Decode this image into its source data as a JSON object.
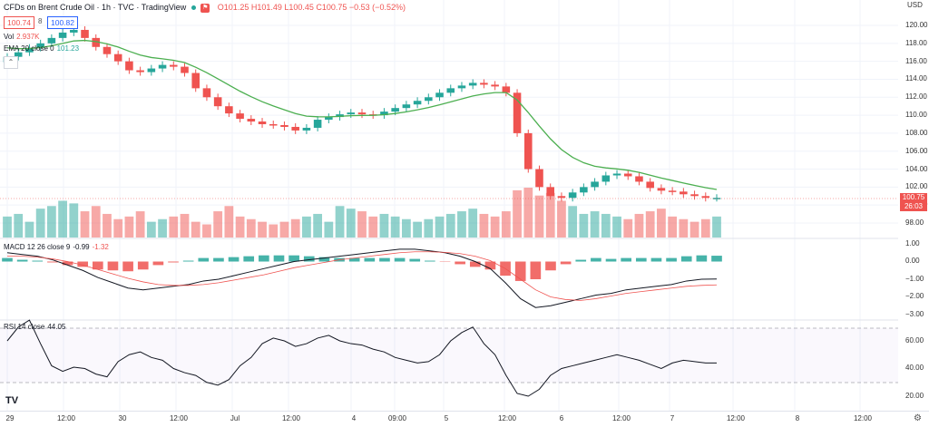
{
  "header": {
    "symbol": "CFDs on Brent Crude Oil · 1h · TVC · TradingView",
    "ohlc": "O101.25 H101.49 L100.45 C100.75 −0.53 (−0.52%)",
    "bid": "100.74",
    "spread": "8",
    "ask": "100.82"
  },
  "indicators": {
    "vol": {
      "name": "Vol",
      "value": "2.937K"
    },
    "ema": {
      "name": "EMA 20 close 0",
      "value": "101.23"
    },
    "macd": {
      "name": "MACD 12 26 close 9",
      "v1": "-0.99",
      "v2": "-1.32"
    },
    "rsi": {
      "name": "RSI 14 close",
      "value": "44.05"
    }
  },
  "last_price": {
    "value": "100.75",
    "countdown": "26:03"
  },
  "currency": "USD",
  "price_axis": [
    "120.00",
    "118.00",
    "116.00",
    "114.00",
    "112.00",
    "110.00",
    "108.00",
    "106.00",
    "104.00",
    "102.00",
    "100.00",
    "98.00"
  ],
  "macd_axis": [
    "1.00",
    "0.00",
    "−1.00",
    "−2.00",
    "−3.00"
  ],
  "rsi_axis": [
    "60.00",
    "40.00",
    "20.00"
  ],
  "time_axis": [
    "29",
    "12:00",
    "30",
    "12:00",
    "Jul",
    "12:00",
    "4",
    "09:00",
    "5",
    "12:00",
    "6",
    "12:00",
    "7",
    "12:00",
    "8",
    "12:00"
  ],
  "colors": {
    "up": "#26a69a",
    "down": "#ef5350",
    "ema": "#4caf50",
    "macd": "#131722",
    "signal": "#ef5350"
  },
  "chart_data": {
    "type": "candlestick",
    "title": "CFDs on Brent Crude Oil · 1h · TVC",
    "ylim": [
      97,
      121
    ],
    "close": [
      116.5,
      117,
      117.5,
      118,
      118.6,
      119.2,
      119.5,
      118.6,
      117.6,
      116.8,
      116,
      115,
      114.8,
      115.2,
      115.6,
      115.4,
      114.7,
      113,
      112,
      111,
      110.2,
      109.6,
      109.3,
      109,
      108.9,
      108.7,
      108.3,
      108.6,
      109.5,
      109.8,
      110.1,
      110.3,
      110.1,
      110,
      110.4,
      110.8,
      111.2,
      111.6,
      112,
      112.5,
      113,
      113.3,
      113.6,
      113.4,
      113.2,
      112.5,
      108,
      104,
      102,
      101,
      100.8,
      101.4,
      102,
      102.6,
      103.3,
      103.5,
      103.2,
      102.6,
      101.9,
      101.6,
      101.5,
      101.2,
      101,
      100.8,
      100.8
    ],
    "volume": [
      40,
      45,
      30,
      55,
      60,
      70,
      65,
      50,
      60,
      45,
      35,
      40,
      50,
      30,
      35,
      40,
      45,
      30,
      25,
      50,
      60,
      40,
      35,
      30,
      25,
      30,
      35,
      40,
      45,
      30,
      60,
      55,
      50,
      40,
      45,
      40,
      35,
      30,
      35,
      40,
      45,
      50,
      55,
      45,
      40,
      50,
      90,
      95,
      80,
      85,
      70,
      60,
      45,
      50,
      45,
      40,
      35,
      45,
      50,
      55,
      40,
      35,
      30,
      35,
      40
    ],
    "rsi": [
      60,
      70,
      75,
      58,
      42,
      38,
      41,
      40,
      36,
      34,
      45,
      50,
      52,
      48,
      46,
      40,
      37,
      35,
      30,
      28,
      32,
      42,
      48,
      58,
      62,
      60,
      56,
      58,
      62,
      64,
      60,
      58,
      57,
      54,
      52,
      48,
      46,
      44,
      45,
      50,
      60,
      66,
      70,
      58,
      50,
      35,
      22,
      20,
      25,
      35,
      40,
      42,
      44,
      46,
      48,
      50,
      48,
      46,
      43,
      40,
      44,
      46,
      45,
      44,
      44
    ],
    "macd": [
      0.5,
      0.4,
      0.3,
      0.1,
      -0.2,
      -0.5,
      -0.9,
      -1.2,
      -1.5,
      -1.6,
      -1.5,
      -1.4,
      -1.3,
      -1.1,
      -1.0,
      -0.8,
      -0.6,
      -0.4,
      -0.2,
      0,
      0.1,
      0.2,
      0.3,
      0.4,
      0.5,
      0.6,
      0.7,
      0.7,
      0.6,
      0.5,
      0.3,
      0,
      -0.4,
      -1.2,
      -2.1,
      -2.6,
      -2.5,
      -2.3,
      -2.1,
      -1.9,
      -1.8,
      -1.6,
      -1.5,
      -1.4,
      -1.3,
      -1.1,
      -1.0,
      -0.99
    ],
    "signal": [
      0.3,
      0.3,
      0.25,
      0.15,
      0,
      -0.2,
      -0.45,
      -0.7,
      -0.95,
      -1.15,
      -1.3,
      -1.35,
      -1.35,
      -1.3,
      -1.2,
      -1.05,
      -0.9,
      -0.75,
      -0.55,
      -0.35,
      -0.2,
      -0.05,
      0.1,
      0.2,
      0.3,
      0.4,
      0.5,
      0.55,
      0.55,
      0.52,
      0.45,
      0.3,
      0.05,
      -0.4,
      -1.0,
      -1.6,
      -2.0,
      -2.15,
      -2.2,
      -2.1,
      -1.95,
      -1.8,
      -1.7,
      -1.6,
      -1.5,
      -1.4,
      -1.35,
      -1.32
    ]
  }
}
